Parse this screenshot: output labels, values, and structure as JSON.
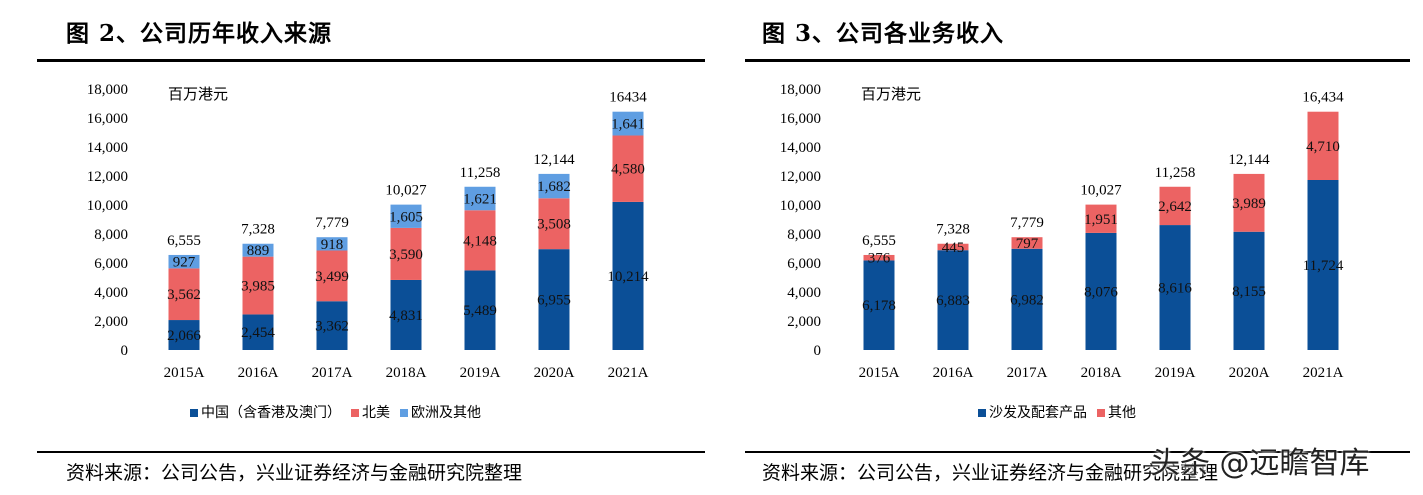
{
  "watermark": "头条 @远瞻智库",
  "chart_data": [
    {
      "type": "bar",
      "stacked": true,
      "title": "图 2、公司历年收入来源",
      "unit_label": "百万港元",
      "categories": [
        "2015A",
        "2016A",
        "2017A",
        "2018A",
        "2019A",
        "2020A",
        "2021A"
      ],
      "ylim": [
        0,
        18000
      ],
      "yticks": [
        "0",
        "2,000",
        "4,000",
        "6,000",
        "8,000",
        "10,000",
        "12,000",
        "14,000",
        "16,000",
        "18,000"
      ],
      "series": [
        {
          "name": "中国（含香港及澳门）",
          "color": "#0b4f97",
          "values": [
            2066,
            2454,
            3362,
            4831,
            5489,
            6955,
            10214
          ],
          "labels": [
            "2,066",
            "2,454",
            "3,362",
            "4,831",
            "5,489",
            "6,955",
            "10,214"
          ]
        },
        {
          "name": "北美",
          "color": "#ec6363",
          "values": [
            3562,
            3985,
            3499,
            3590,
            4148,
            3508,
            4580
          ],
          "labels": [
            "3,562",
            "3,985",
            "3,499",
            "3,590",
            "4,148",
            "3,508",
            "4,580"
          ]
        },
        {
          "name": "欧洲及其他",
          "color": "#5f9ee2",
          "values": [
            927,
            889,
            918,
            1605,
            1621,
            1682,
            1641
          ],
          "labels": [
            "927",
            "889",
            "918",
            "1,605",
            "1,621",
            "1,682",
            "1,641"
          ]
        }
      ],
      "totals": [
        "6,555",
        "7,328",
        "7,779",
        "10,027",
        "11,258",
        "12,144",
        "16434"
      ],
      "source": "资料来源：公司公告，兴业证券经济与金融研究院整理"
    },
    {
      "type": "bar",
      "stacked": true,
      "title": "图 3、公司各业务收入",
      "unit_label": "百万港元",
      "categories": [
        "2015A",
        "2016A",
        "2017A",
        "2018A",
        "2019A",
        "2020A",
        "2021A"
      ],
      "ylim": [
        0,
        18000
      ],
      "yticks": [
        "0",
        "2,000",
        "4,000",
        "6,000",
        "8,000",
        "10,000",
        "12,000",
        "14,000",
        "16,000",
        "18,000"
      ],
      "series": [
        {
          "name": "沙发及配套产品",
          "color": "#0b4f97",
          "values": [
            6178,
            6883,
            6982,
            8076,
            8616,
            8155,
            11724
          ],
          "labels": [
            "6,178",
            "6,883",
            "6,982",
            "8,076",
            "8,616",
            "8,155",
            "11,724"
          ]
        },
        {
          "name": "其他",
          "color": "#ec6363",
          "values": [
            376,
            445,
            797,
            1951,
            2642,
            3989,
            4710
          ],
          "labels": [
            "376",
            "445",
            "797",
            "1,951",
            "2,642",
            "3,989",
            "4,710"
          ]
        }
      ],
      "totals": [
        "6,555",
        "7,328",
        "7,779",
        "10,027",
        "11,258",
        "12,144",
        "16,434"
      ],
      "source": "资料来源：公司公告，兴业证券经济与金融研究院整理"
    }
  ]
}
